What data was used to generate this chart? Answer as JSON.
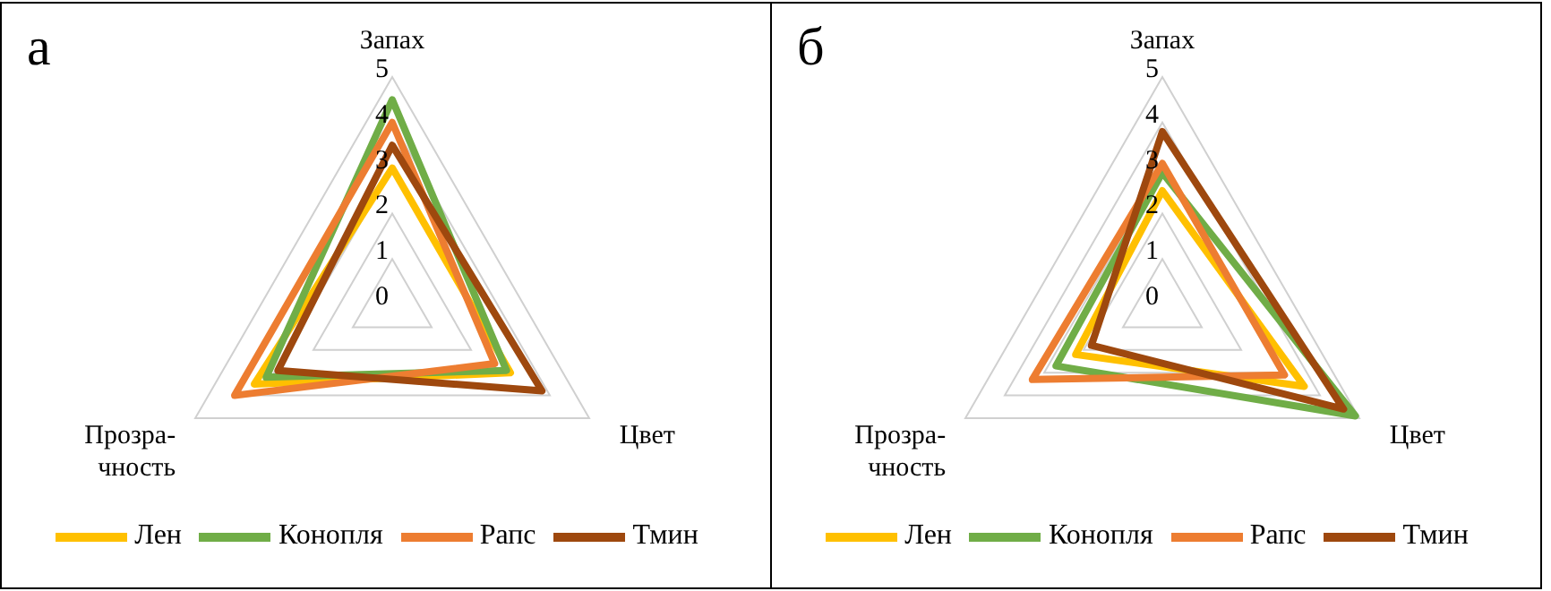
{
  "chart_data": [
    {
      "type": "radar",
      "title": "а",
      "categories": [
        "Запах",
        "Цвет",
        "Прозра-чность"
      ],
      "ylim": [
        0,
        5
      ],
      "yticks": [
        0,
        1,
        2,
        3,
        4,
        5
      ],
      "legend": "bottom",
      "grid": true,
      "series": [
        {
          "name": "Лен",
          "color": "#ffc000",
          "values": [
            3,
            3,
            3.5
          ]
        },
        {
          "name": "Конопля",
          "color": "#70ad47",
          "values": [
            4.5,
            2.9,
            3.2
          ]
        },
        {
          "name": "Рапс",
          "color": "#ed7d31",
          "values": [
            4,
            2.6,
            4
          ]
        },
        {
          "name": "Тмин",
          "color": "#9e480e",
          "values": [
            3.5,
            3.8,
            2.9
          ]
        }
      ]
    },
    {
      "type": "radar",
      "title": "б",
      "categories": [
        "Запах",
        "Цвет",
        "Прозра-чность"
      ],
      "ylim": [
        0,
        5
      ],
      "yticks": [
        0,
        1,
        2,
        3,
        4,
        5
      ],
      "legend": "bottom",
      "grid": true,
      "series": [
        {
          "name": "Лен",
          "color": "#ffc000",
          "values": [
            2.5,
            3.6,
            2.2
          ]
        },
        {
          "name": "Конопля",
          "color": "#70ad47",
          "values": [
            2.9,
            4.9,
            2.7
          ]
        },
        {
          "name": "Рапс",
          "color": "#ed7d31",
          "values": [
            3.1,
            3.1,
            3.3
          ]
        },
        {
          "name": "Тмин",
          "color": "#9e480e",
          "values": [
            3.8,
            4.6,
            1.8
          ]
        }
      ]
    }
  ]
}
